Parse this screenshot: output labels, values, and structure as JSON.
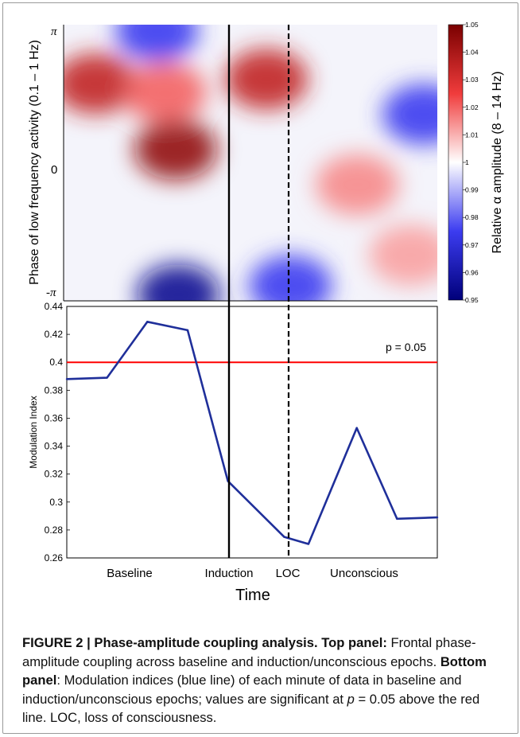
{
  "chart_data": [
    {
      "type": "heatmap",
      "title": "",
      "xlabel": "",
      "ylabel": "Phase of low frequency activity (0.1 – 1 Hz)",
      "y_ticks": [
        "π",
        "0",
        "-π"
      ],
      "ylim": [
        -3.1416,
        3.1416
      ],
      "colorbar": {
        "label": "Relative α amplitude (8 – 14 Hz)",
        "range": [
          0.95,
          1.05
        ],
        "ticks": [
          "1.05",
          "1.04",
          "1.03",
          "1.02",
          "1.01",
          "1",
          "0.99",
          "0.98",
          "0.97",
          "0.96",
          "0.95"
        ],
        "colormap": [
          "#00007a",
          "#3c3cf0",
          "#ffffff",
          "#f03c3c",
          "#7a0000"
        ]
      },
      "approx_blobs": [
        {
          "minute": 1.2,
          "phase": 1.8,
          "value": 1.035
        },
        {
          "minute": 4.2,
          "phase": 0.3,
          "value": 1.045
        },
        {
          "minute": 3.8,
          "phase": 1.6,
          "value": 1.02
        },
        {
          "minute": 7.6,
          "phase": 1.9,
          "value": 1.035
        },
        {
          "minute": 4.3,
          "phase": -3.0,
          "value": 0.955
        },
        {
          "minute": 3.5,
          "phase": 3.0,
          "value": 0.975
        },
        {
          "minute": 13.5,
          "phase": 1.1,
          "value": 0.975
        },
        {
          "minute": 8.5,
          "phase": -2.8,
          "value": 0.975
        },
        {
          "minute": 11.0,
          "phase": -0.5,
          "value": 1.015
        },
        {
          "minute": 13.0,
          "phase": -2.1,
          "value": 1.012
        }
      ]
    },
    {
      "type": "line",
      "title": "",
      "xlabel": "Time",
      "ylabel": "Modulation Index",
      "ylim": [
        0.26,
        0.44
      ],
      "y_ticks": [
        "0.44",
        "0.42",
        "0.4",
        "0.38",
        "0.36",
        "0.34",
        "0.32",
        "0.3",
        "0.28",
        "0.26"
      ],
      "x_category_labels": [
        "Baseline",
        "Induction",
        "LOC",
        "Unconscious"
      ],
      "x": [
        0,
        1,
        2,
        3,
        4,
        5,
        6,
        7,
        8,
        9,
        10,
        11
      ],
      "series": [
        {
          "values": [
            0.388,
            0.389,
            0.429,
            0.423,
            0.315,
            0.275,
            0.27,
            0.353,
            0.288,
            0.289
          ],
          "x": [
            0,
            1,
            2,
            3,
            4,
            5.4,
            6,
            7.2,
            8.2,
            9.2
          ]
        }
      ],
      "threshold": {
        "value": 0.4,
        "label": "p = 0.05",
        "color": "#ff0000"
      },
      "events": [
        {
          "name": "induction",
          "x": 4.0,
          "style": "solid"
        },
        {
          "name": "loc",
          "x": 5.6,
          "style": "dashed"
        }
      ],
      "line_color": "#1f2f9a"
    }
  ],
  "caption": {
    "label": "FIGURE 2 | Phase-amplitude coupling analysis. Top panel:",
    "text1": " Frontal phase-amplitude coupling across baseline and induction/unconscious epochs. ",
    "bottom_label": "Bottom panel",
    "text2": ": Modulation indices (blue line) of each minute of data in baseline and induction/unconscious epochs; values are significant at ",
    "pvar": "p",
    "text3": " = 0.05 above the red line. LOC, loss of consciousness."
  }
}
